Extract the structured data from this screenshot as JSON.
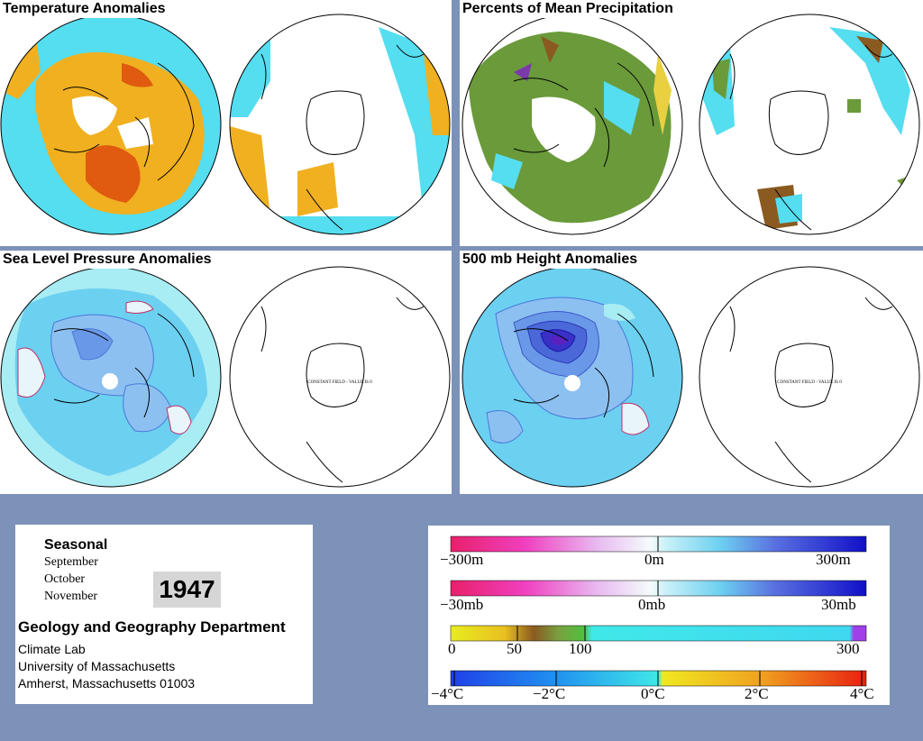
{
  "panels": {
    "temperature": {
      "title": "Temperature Anomalies"
    },
    "precip": {
      "title": "Percents of Mean Precipitation"
    },
    "slp": {
      "title": "Sea Level Pressure Anomalies",
      "note": "CONSTANT FIELD - VALUE IS 0"
    },
    "height500": {
      "title": "500 mb Height Anomalies",
      "note": "CONSTANT FIELD - VALUE IS 0"
    }
  },
  "info": {
    "heading": "Seasonal",
    "months": [
      "September",
      "October",
      "November"
    ],
    "year": "1947",
    "department": "Geology and Geography Department",
    "lines": [
      "Climate Lab",
      "University of Massachusetts",
      "Amherst, Massachusetts 01003"
    ]
  },
  "legend": {
    "height": {
      "left": "−300m",
      "mid": "0m",
      "right": "300m"
    },
    "pressure": {
      "left": "−30mb",
      "mid": "0mb",
      "right": "30mb"
    },
    "precip": {
      "l0": "0",
      "l1": "50",
      "l2": "100",
      "l3": "300"
    },
    "temp": {
      "l0": "−4°C",
      "l1": "−2°C",
      "l2": "0°C",
      "l3": "2°C",
      "l4": "4°C"
    }
  },
  "colors": {
    "background": "#7d92b8",
    "anomaly_blue": "#55ddf0",
    "anomaly_orange": "#f0b020",
    "anomaly_red": "#e05a10",
    "precip_green": "#6a9a3a",
    "contour_blue": "#4a78d8",
    "contour_pink": "#c0306a"
  }
}
